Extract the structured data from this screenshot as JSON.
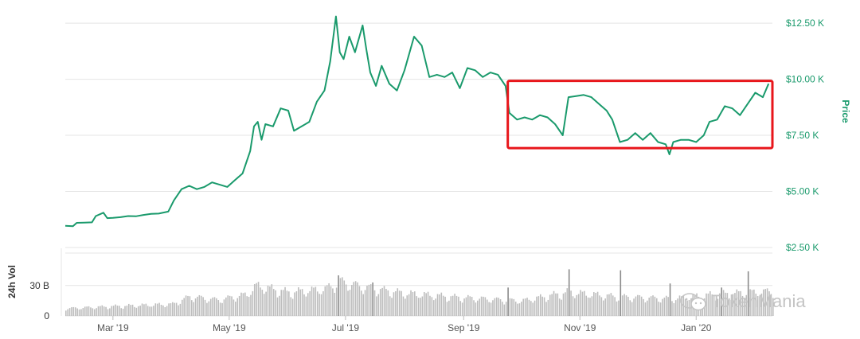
{
  "chart_data": {
    "type": "line",
    "title": "",
    "ylabel": "Price",
    "volume_label": "24h Vol",
    "ylim": [
      2500,
      13000
    ],
    "yticks": [
      {
        "value": 2500,
        "label": "$2.50 K"
      },
      {
        "value": 5000,
        "label": "$5.00 K"
      },
      {
        "value": 7500,
        "label": "$7.50 K"
      },
      {
        "value": 10000,
        "label": "$10.00 K"
      },
      {
        "value": 12500,
        "label": "$12.50 K"
      }
    ],
    "xticks": [
      {
        "date": "2019-03-01",
        "label": "Mar '19"
      },
      {
        "date": "2019-05-01",
        "label": "May '19"
      },
      {
        "date": "2019-07-01",
        "label": "Jul '19"
      },
      {
        "date": "2019-09-01",
        "label": "Sep '19"
      },
      {
        "date": "2019-11-01",
        "label": "Nov '19"
      },
      {
        "date": "2020-01-01",
        "label": "Jan '20"
      }
    ],
    "xlim": [
      "2019-02-04",
      "2020-02-10"
    ],
    "volume_yticks": [
      {
        "value": 0,
        "label": "0"
      },
      {
        "value": 30,
        "label": "30 B"
      }
    ],
    "volume_ylim": [
      0,
      62
    ],
    "series": [
      {
        "values": [
          [
            "2019-02-04",
            3470
          ],
          [
            "2019-02-08",
            3450
          ],
          [
            "2019-02-10",
            3600
          ],
          [
            "2019-02-14",
            3610
          ],
          [
            "2019-02-18",
            3620
          ],
          [
            "2019-02-20",
            3900
          ],
          [
            "2019-02-24",
            4050
          ],
          [
            "2019-02-26",
            3810
          ],
          [
            "2019-03-01",
            3820
          ],
          [
            "2019-03-05",
            3850
          ],
          [
            "2019-03-09",
            3900
          ],
          [
            "2019-03-13",
            3890
          ],
          [
            "2019-03-17",
            3950
          ],
          [
            "2019-03-21",
            4000
          ],
          [
            "2019-03-25",
            4010
          ],
          [
            "2019-03-30",
            4100
          ],
          [
            "2019-04-02",
            4600
          ],
          [
            "2019-04-06",
            5100
          ],
          [
            "2019-04-10",
            5250
          ],
          [
            "2019-04-14",
            5100
          ],
          [
            "2019-04-18",
            5200
          ],
          [
            "2019-04-22",
            5400
          ],
          [
            "2019-04-26",
            5300
          ],
          [
            "2019-04-30",
            5200
          ],
          [
            "2019-05-04",
            5500
          ],
          [
            "2019-05-08",
            5800
          ],
          [
            "2019-05-12",
            6800
          ],
          [
            "2019-05-14",
            7900
          ],
          [
            "2019-05-16",
            8100
          ],
          [
            "2019-05-18",
            7300
          ],
          [
            "2019-05-20",
            8000
          ],
          [
            "2019-05-24",
            7900
          ],
          [
            "2019-05-28",
            8700
          ],
          [
            "2019-06-01",
            8600
          ],
          [
            "2019-06-04",
            7700
          ],
          [
            "2019-06-08",
            7900
          ],
          [
            "2019-06-12",
            8100
          ],
          [
            "2019-06-16",
            9000
          ],
          [
            "2019-06-20",
            9500
          ],
          [
            "2019-06-23",
            10800
          ],
          [
            "2019-06-26",
            12800
          ],
          [
            "2019-06-28",
            11200
          ],
          [
            "2019-06-30",
            10900
          ],
          [
            "2019-07-03",
            11900
          ],
          [
            "2019-07-06",
            11200
          ],
          [
            "2019-07-10",
            12400
          ],
          [
            "2019-07-12",
            11300
          ],
          [
            "2019-07-14",
            10300
          ],
          [
            "2019-07-17",
            9700
          ],
          [
            "2019-07-20",
            10600
          ],
          [
            "2019-07-24",
            9800
          ],
          [
            "2019-07-28",
            9500
          ],
          [
            "2019-08-01",
            10400
          ],
          [
            "2019-08-06",
            11900
          ],
          [
            "2019-08-10",
            11500
          ],
          [
            "2019-08-14",
            10100
          ],
          [
            "2019-08-18",
            10200
          ],
          [
            "2019-08-22",
            10100
          ],
          [
            "2019-08-26",
            10300
          ],
          [
            "2019-08-30",
            9600
          ],
          [
            "2019-09-03",
            10500
          ],
          [
            "2019-09-07",
            10400
          ],
          [
            "2019-09-11",
            10100
          ],
          [
            "2019-09-15",
            10300
          ],
          [
            "2019-09-19",
            10200
          ],
          [
            "2019-09-23",
            9700
          ],
          [
            "2019-09-25",
            8500
          ],
          [
            "2019-09-29",
            8200
          ],
          [
            "2019-10-03",
            8300
          ],
          [
            "2019-10-07",
            8200
          ],
          [
            "2019-10-11",
            8400
          ],
          [
            "2019-10-15",
            8300
          ],
          [
            "2019-10-19",
            8000
          ],
          [
            "2019-10-23",
            7500
          ],
          [
            "2019-10-26",
            9200
          ],
          [
            "2019-10-30",
            9250
          ],
          [
            "2019-11-03",
            9300
          ],
          [
            "2019-11-07",
            9200
          ],
          [
            "2019-11-11",
            8900
          ],
          [
            "2019-11-15",
            8600
          ],
          [
            "2019-11-18",
            8200
          ],
          [
            "2019-11-22",
            7200
          ],
          [
            "2019-11-26",
            7300
          ],
          [
            "2019-11-30",
            7600
          ],
          [
            "2019-12-04",
            7300
          ],
          [
            "2019-12-08",
            7600
          ],
          [
            "2019-12-12",
            7200
          ],
          [
            "2019-12-16",
            7100
          ],
          [
            "2019-12-18",
            6650
          ],
          [
            "2019-12-20",
            7200
          ],
          [
            "2019-12-24",
            7300
          ],
          [
            "2019-12-28",
            7300
          ],
          [
            "2020-01-01",
            7200
          ],
          [
            "2020-01-05",
            7500
          ],
          [
            "2020-01-08",
            8100
          ],
          [
            "2020-01-12",
            8200
          ],
          [
            "2020-01-16",
            8800
          ],
          [
            "2020-01-20",
            8700
          ],
          [
            "2020-01-24",
            8400
          ],
          [
            "2020-01-28",
            8900
          ],
          [
            "2020-02-01",
            9400
          ],
          [
            "2020-02-05",
            9200
          ],
          [
            "2020-02-08",
            9800
          ]
        ]
      }
    ],
    "volume_keypoints": [
      [
        "2019-02-04",
        7
      ],
      [
        "2019-03-01",
        9
      ],
      [
        "2019-04-01",
        11
      ],
      [
        "2019-04-10",
        18
      ],
      [
        "2019-04-25",
        15
      ],
      [
        "2019-05-10",
        20
      ],
      [
        "2019-05-15",
        28
      ],
      [
        "2019-06-01",
        22
      ],
      [
        "2019-06-20",
        25
      ],
      [
        "2019-06-28",
        32
      ],
      [
        "2019-07-10",
        27
      ],
      [
        "2019-08-01",
        21
      ],
      [
        "2019-09-01",
        17
      ],
      [
        "2019-10-01",
        14
      ],
      [
        "2019-10-25",
        22
      ],
      [
        "2019-11-20",
        18
      ],
      [
        "2019-12-20",
        16
      ],
      [
        "2020-01-10",
        20
      ],
      [
        "2020-02-10",
        23
      ]
    ],
    "volume_spikes": [
      [
        "2019-06-27",
        40
      ],
      [
        "2019-07-15",
        33
      ],
      [
        "2019-09-24",
        28
      ],
      [
        "2019-10-26",
        46
      ],
      [
        "2019-11-22",
        45
      ],
      [
        "2019-12-18",
        32
      ],
      [
        "2020-01-14",
        28
      ],
      [
        "2020-01-28",
        44
      ]
    ],
    "highlight_box": {
      "from": "2019-09-25",
      "to": "2020-02-10",
      "ymin": 7000,
      "ymax": 10000
    },
    "colors": {
      "line": "#1a9a6c",
      "volume": "#bdbdbd",
      "volume_spike": "#8a8a8a",
      "grid": "#e4e4e4",
      "highlight": "#e8161b"
    },
    "watermark": "TokenMania"
  }
}
